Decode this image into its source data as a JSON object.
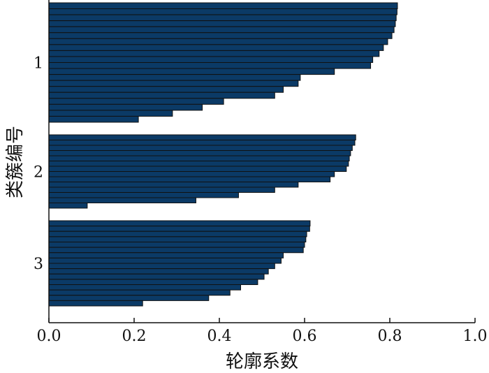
{
  "chart_data": {
    "type": "bar",
    "orientation": "horizontal",
    "xlabel": "轮廓系数",
    "ylabel": "类簇编号",
    "xlim": [
      0.0,
      1.0
    ],
    "xticks": [
      "0.0",
      "0.2",
      "0.4",
      "0.6",
      "0.8",
      "1.0"
    ],
    "grid": false,
    "bar_color": "#0b3a66",
    "bar_edge_color": "#111111",
    "clusters": [
      {
        "label": "1",
        "values": [
          0.818,
          0.817,
          0.815,
          0.813,
          0.81,
          0.805,
          0.795,
          0.785,
          0.775,
          0.76,
          0.755,
          0.67,
          0.59,
          0.585,
          0.55,
          0.53,
          0.41,
          0.36,
          0.29,
          0.21
        ]
      },
      {
        "label": "2",
        "values": [
          0.72,
          0.718,
          0.712,
          0.708,
          0.705,
          0.703,
          0.698,
          0.67,
          0.66,
          0.585,
          0.53,
          0.445,
          0.345,
          0.09
        ]
      },
      {
        "label": "3",
        "values": [
          0.613,
          0.612,
          0.605,
          0.603,
          0.6,
          0.597,
          0.55,
          0.545,
          0.53,
          0.515,
          0.505,
          0.49,
          0.45,
          0.425,
          0.375,
          0.22
        ]
      }
    ]
  }
}
